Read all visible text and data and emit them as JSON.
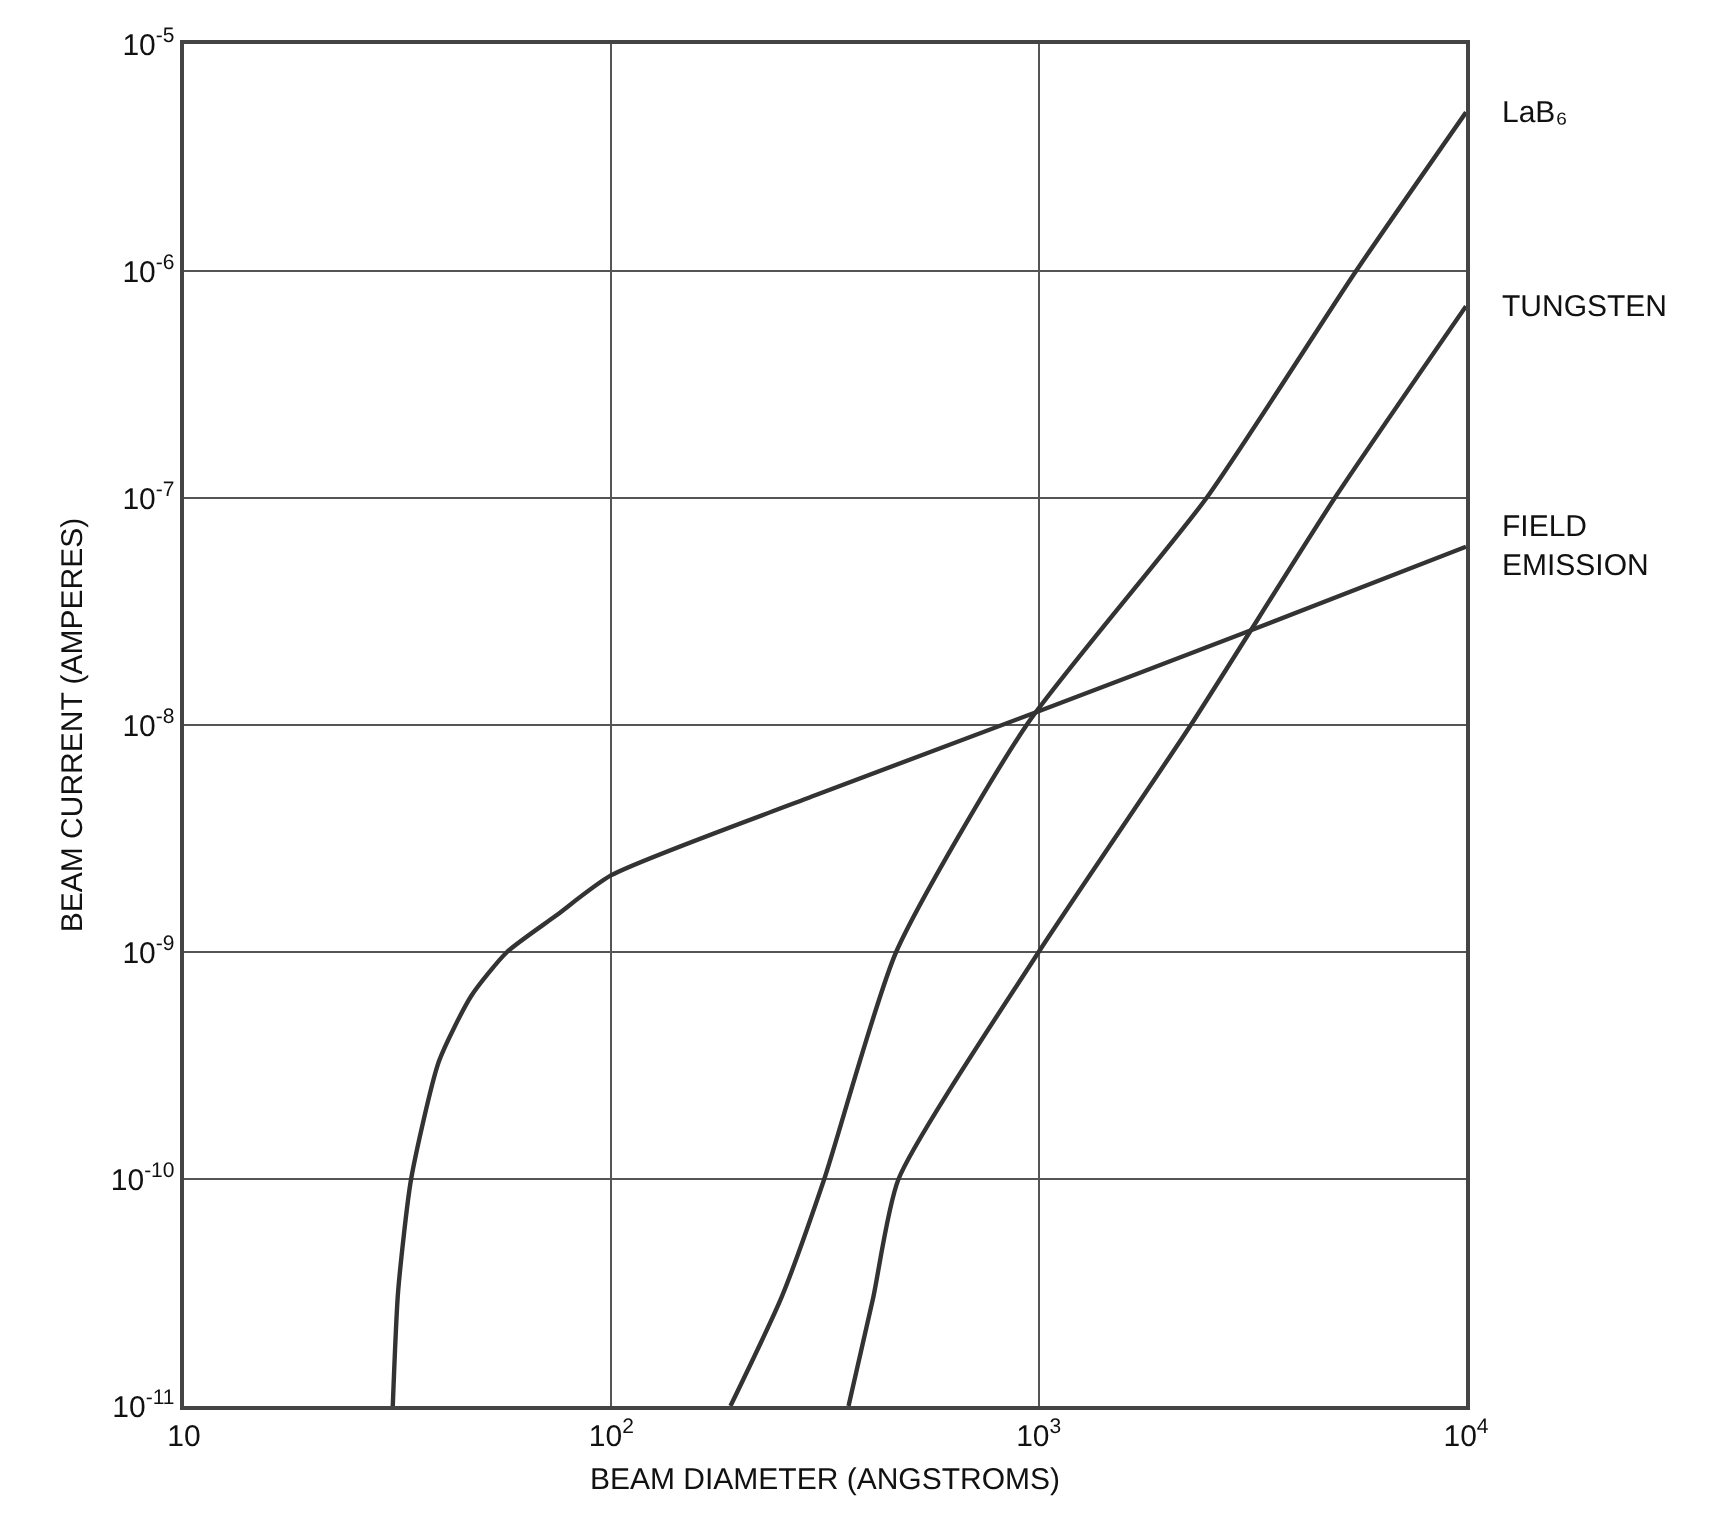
{
  "chart_data": {
    "type": "line",
    "xlabel": "BEAM DIAMETER (ANGSTROMS)",
    "ylabel": "BEAM CURRENT (AMPERES)",
    "log": "xy",
    "grid": true,
    "legend": false,
    "marker": "none",
    "line_style": "solid",
    "xlim": [
      10,
      10000
    ],
    "ylim": [
      1e-11,
      1e-05
    ],
    "xticks": [
      10,
      {
        "value": 100,
        "label": "10$^{2}$"
      },
      {
        "value": 1000,
        "label": "10$^{3}$"
      },
      {
        "value": 10000,
        "label": "10$^{4}$"
      }
    ],
    "yticks": [
      {
        "value": 1e-11,
        "label": "10$^{-11}$"
      },
      {
        "value": 1e-10,
        "label": "10$^{-10}$"
      },
      {
        "value": 1e-09,
        "label": "10$^{-9}$"
      },
      {
        "value": 1e-08,
        "label": "10$^{-8}$"
      },
      {
        "value": 1e-07,
        "label": "10$^{-7}$"
      },
      {
        "value": 1e-06,
        "label": "10$^{-6}$"
      },
      {
        "value": 1e-05,
        "label": "10$^{-5}$"
      }
    ],
    "series": [
      {
        "name": "LaB₆",
        "color": "#333333",
        "x": [
          190,
          250,
          315,
          464,
          937,
          2470,
          5530,
          10000
        ],
        "values": [
          1e-11,
          3e-11,
          1e-10,
          1e-09,
          1e-08,
          1e-07,
          1e-06,
          5e-06
        ]
      },
      {
        "name": "TUNGSTEN",
        "color": "#333333",
        "x": [
          359,
          410,
          470,
          1000,
          2270,
          4930,
          10000
        ],
        "values": [
          1e-11,
          3e-11,
          1e-10,
          1e-09,
          1e-08,
          1e-07,
          7e-07
        ]
      },
      {
        "name": "FIELD\nEMISSION",
        "color": "#333333",
        "x": [
          30.8,
          31.7,
          34,
          39.5,
          47,
          57,
          74,
          100,
          300,
          1000,
          3000,
          10000
        ],
        "values": [
          1e-11,
          3.2e-11,
          1e-10,
          3.3e-10,
          6.4e-10,
          1e-09,
          1.44e-09,
          2.18e-09,
          4.9e-09,
          1.15e-08,
          2.53e-08,
          6.1e-08
        ]
      }
    ]
  }
}
